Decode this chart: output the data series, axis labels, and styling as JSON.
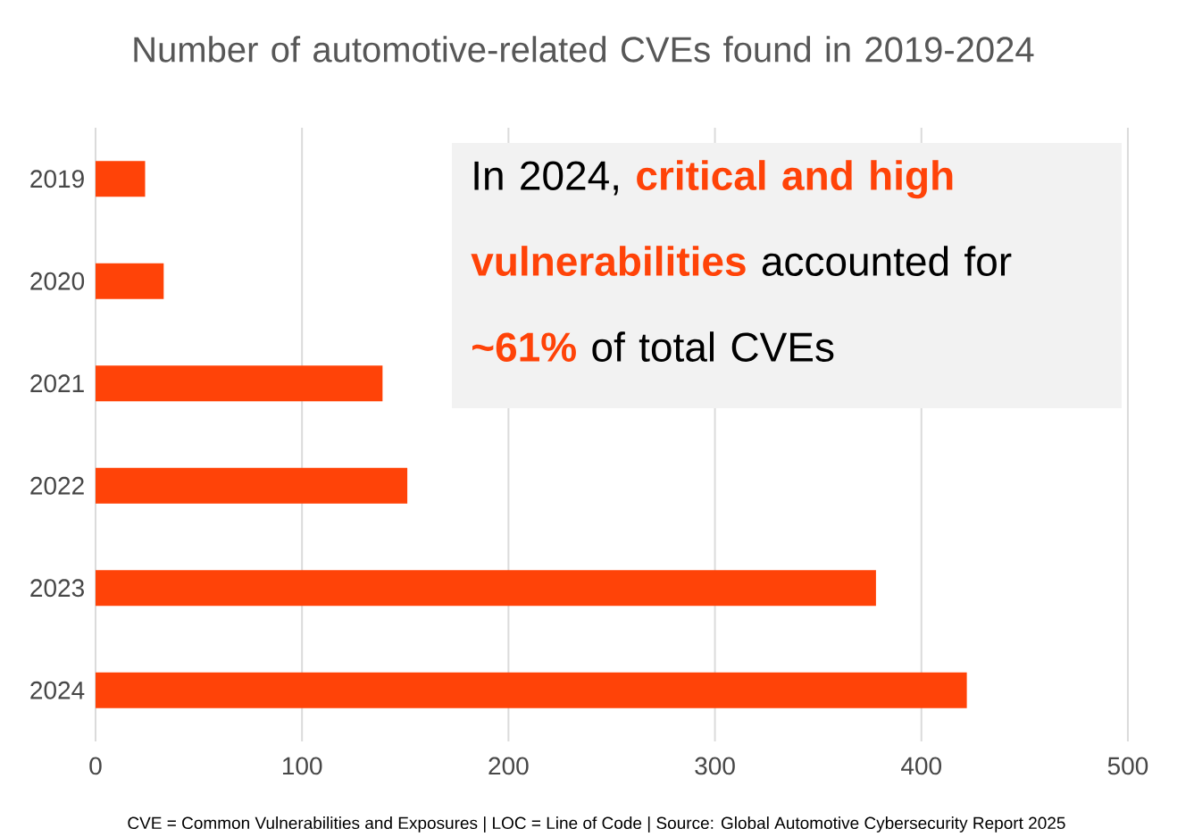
{
  "chart_data": {
    "type": "bar",
    "orientation": "horizontal",
    "title": "Number of automotive-related CVEs found in 2019-2024",
    "categories": [
      "2019",
      "2020",
      "2021",
      "2022",
      "2023",
      "2024"
    ],
    "values": [
      24,
      33,
      139,
      151,
      378,
      422
    ],
    "color": "#ff4308",
    "xlim": [
      0,
      500
    ],
    "xticks": [
      0,
      100,
      200,
      300,
      400,
      500
    ],
    "grid": "x",
    "annotations": [
      "In 2024,",
      "critical and high vulnerabilities",
      "accounted for",
      "~61%",
      "of total CVEs",
      "CVE = Common Vulnerabilities and Exposures | LOC = Line of Code | Source: Global Automotive Cybersecurity Report 2025"
    ]
  }
}
